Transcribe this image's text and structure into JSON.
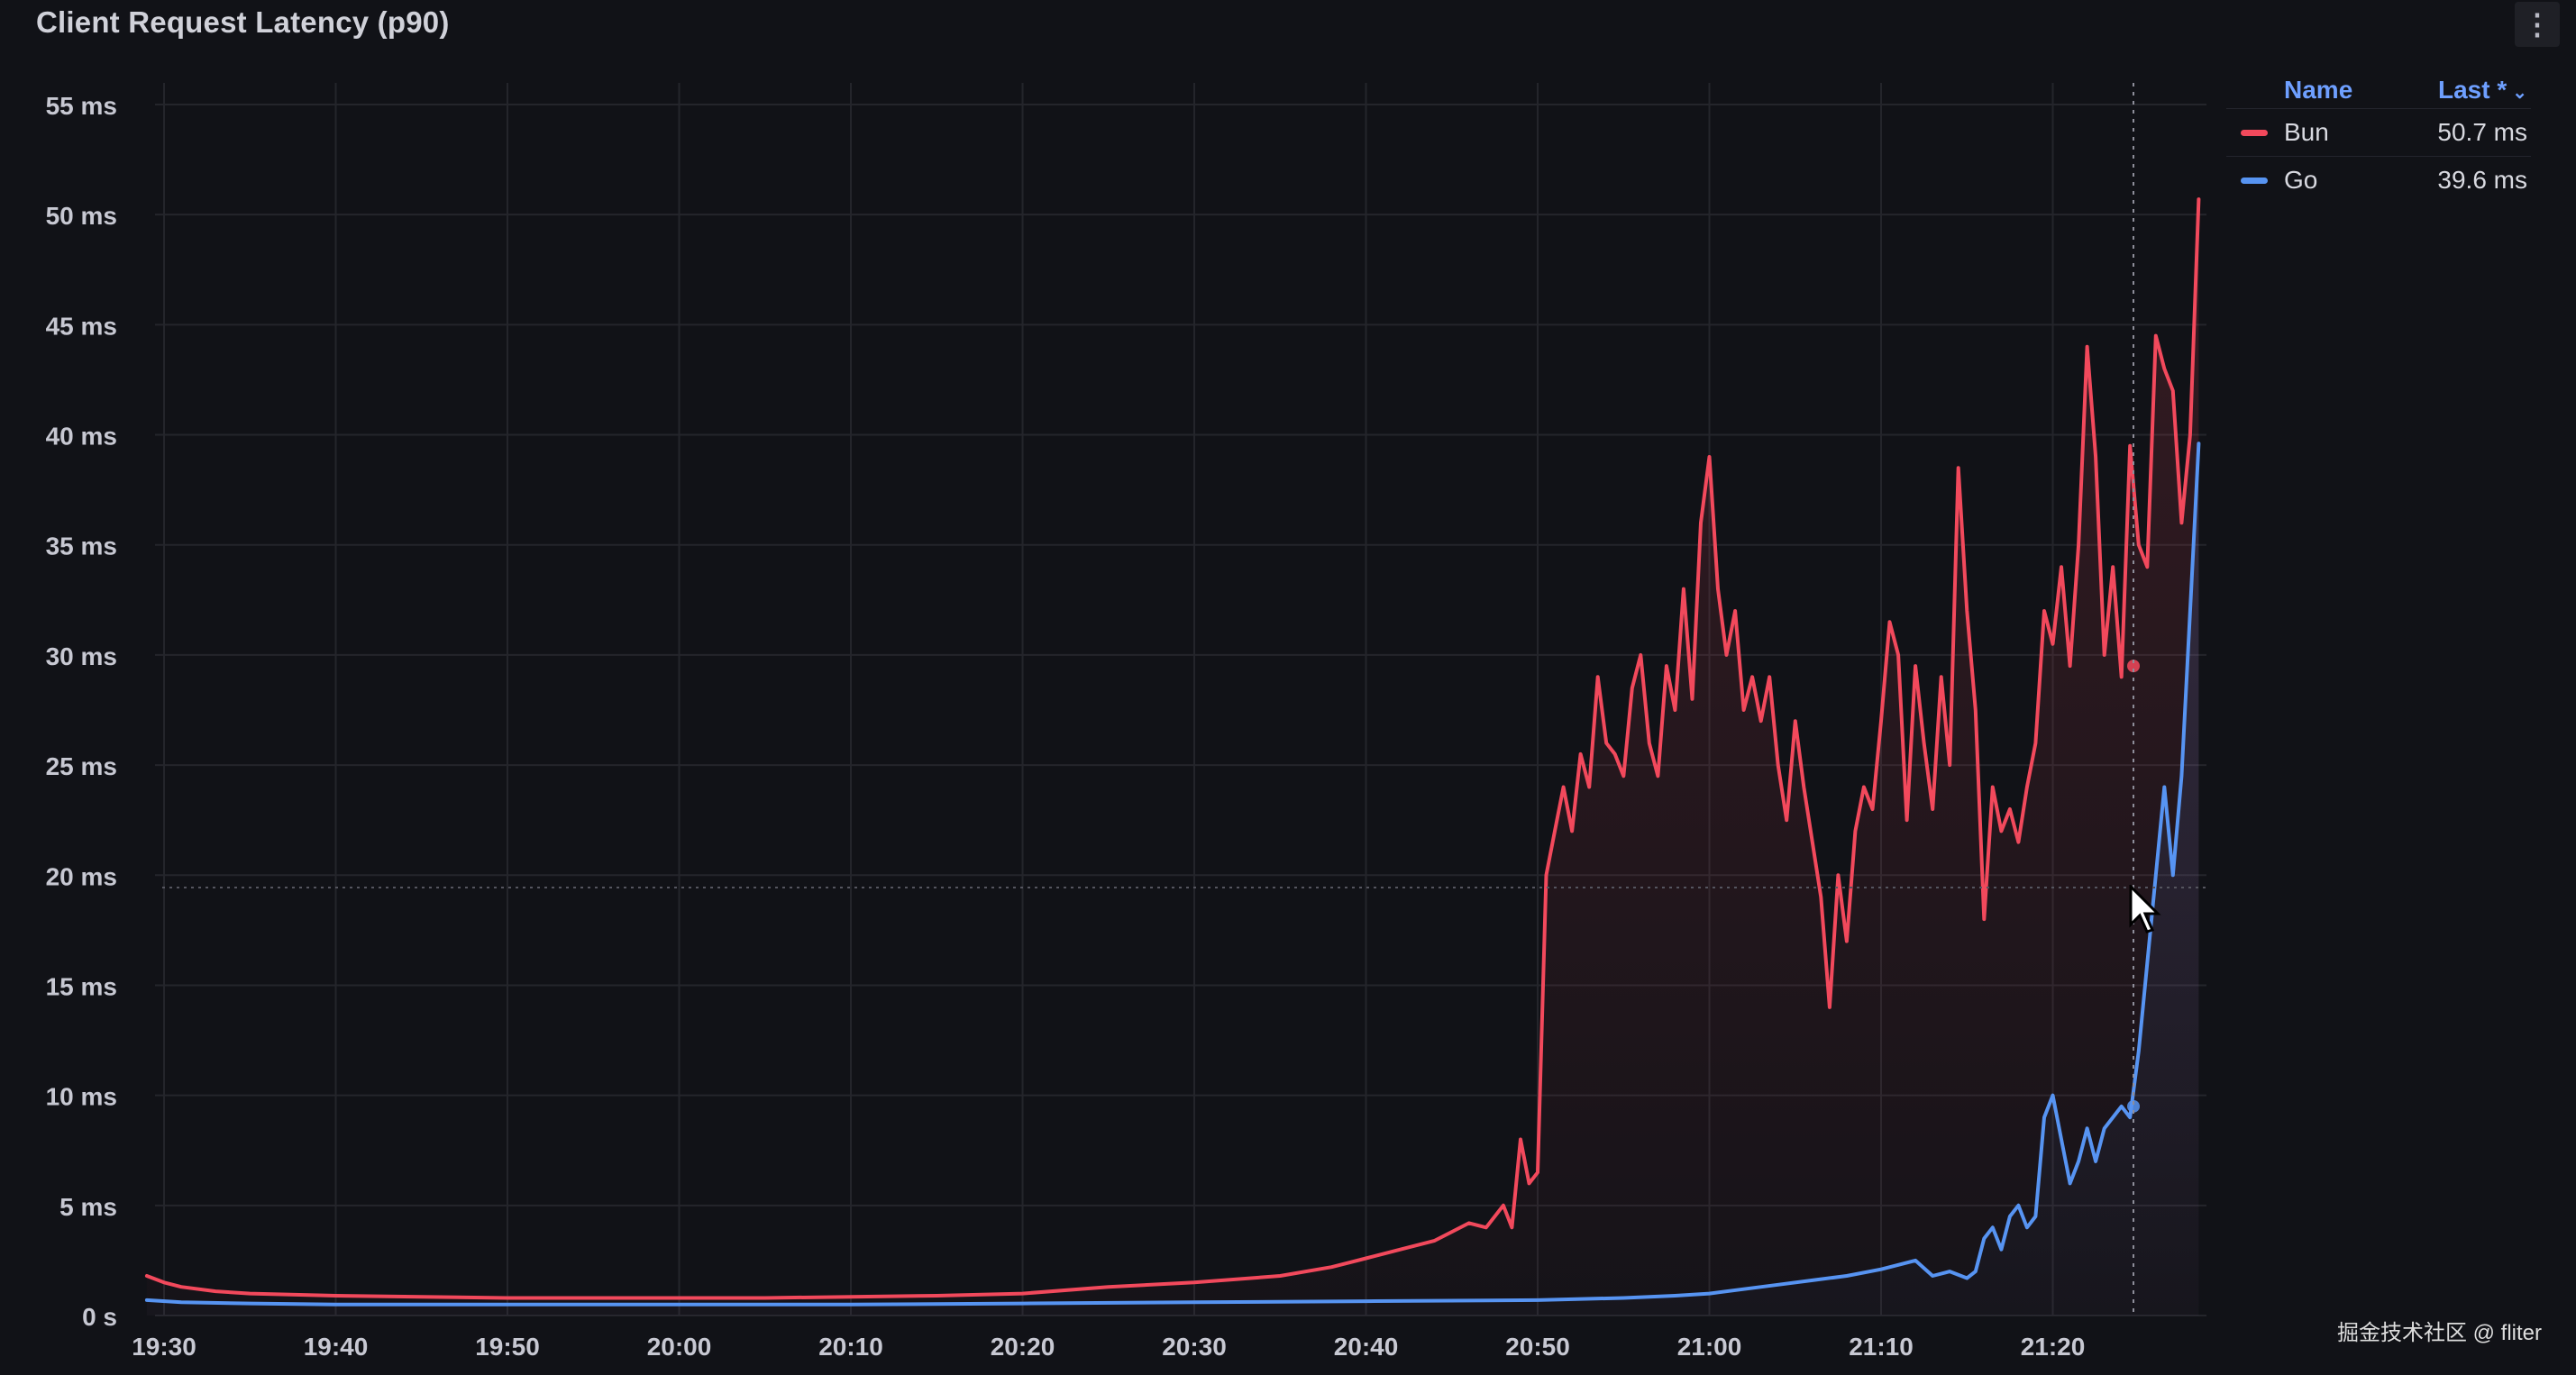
{
  "panel": {
    "title": "Client Request Latency (p90)",
    "menu_icon": "vertical-dots-icon"
  },
  "legend": {
    "header_name": "Name",
    "header_last": "Last *",
    "sort_icon": "chevron-down-icon",
    "items": [
      {
        "name": "Bun",
        "last": "50.7 ms",
        "color": "#f2495c"
      },
      {
        "name": "Go",
        "last": "39.6 ms",
        "color": "#5794f2"
      }
    ]
  },
  "watermark": "掘金技术社区 @ fliter",
  "chart_data": {
    "type": "line",
    "x_unit": "time (HH:MM)",
    "y_unit": "ms",
    "ylim": [
      0,
      55
    ],
    "xlim": [
      "19:30",
      "21:29"
    ],
    "yticks": [
      "0 s",
      "5 ms",
      "10 ms",
      "15 ms",
      "20 ms",
      "25 ms",
      "30 ms",
      "35 ms",
      "40 ms",
      "45 ms",
      "50 ms",
      "55 ms"
    ],
    "xticks": [
      "19:30",
      "19:40",
      "19:50",
      "20:00",
      "20:10",
      "20:20",
      "20:30",
      "20:40",
      "20:50",
      "21:00",
      "21:10",
      "21:20"
    ],
    "grid": true,
    "legend_position": "right",
    "series": [
      {
        "name": "Bun",
        "color": "#f2495c",
        "x": [
          "19:29",
          "19:30",
          "19:31",
          "19:33",
          "19:35",
          "19:40",
          "19:45",
          "19:50",
          "19:55",
          "20:00",
          "20:05",
          "20:10",
          "20:15",
          "20:20",
          "20:25",
          "20:30",
          "20:35",
          "20:38",
          "20:40",
          "20:42",
          "20:44",
          "20:45",
          "20:46",
          "20:47",
          "20:48",
          "20:48:30",
          "20:49",
          "20:49:30",
          "20:50",
          "20:50:30",
          "20:51",
          "20:51:30",
          "20:52",
          "20:52:30",
          "20:53",
          "20:53:30",
          "20:54",
          "20:54:30",
          "20:55",
          "20:55:30",
          "20:56",
          "20:56:30",
          "20:57",
          "20:57:30",
          "20:58",
          "20:58:30",
          "20:59",
          "20:59:30",
          "21:00",
          "21:00:30",
          "21:01",
          "21:01:30",
          "21:02",
          "21:02:30",
          "21:03",
          "21:03:30",
          "21:04",
          "21:04:30",
          "21:05",
          "21:05:30",
          "21:06",
          "21:06:30",
          "21:07",
          "21:07:30",
          "21:08",
          "21:08:30",
          "21:09",
          "21:09:30",
          "21:10",
          "21:10:30",
          "21:11",
          "21:11:30",
          "21:12",
          "21:12:30",
          "21:13",
          "21:13:30",
          "21:14",
          "21:14:30",
          "21:15",
          "21:15:30",
          "21:16",
          "21:16:30",
          "21:17",
          "21:17:30",
          "21:18",
          "21:18:30",
          "21:19",
          "21:19:30",
          "21:20",
          "21:20:30",
          "21:21",
          "21:21:30",
          "21:22",
          "21:22:30",
          "21:23",
          "21:23:30",
          "21:24",
          "21:24:30",
          "21:25",
          "21:25:30",
          "21:26",
          "21:26:30",
          "21:27",
          "21:27:30",
          "21:28",
          "21:28:30"
        ],
        "values": [
          1.8,
          1.5,
          1.3,
          1.1,
          1.0,
          0.9,
          0.85,
          0.8,
          0.8,
          0.8,
          0.8,
          0.85,
          0.9,
          1.0,
          1.3,
          1.5,
          1.8,
          2.2,
          2.6,
          3.0,
          3.4,
          3.8,
          4.2,
          4.0,
          5.0,
          4.0,
          8.0,
          6.0,
          6.5,
          20.0,
          22.0,
          24.0,
          22.0,
          25.5,
          24.0,
          29.0,
          26.0,
          25.5,
          24.5,
          28.5,
          30.0,
          26.0,
          24.5,
          29.5,
          27.5,
          33.0,
          28.0,
          36.0,
          39.0,
          33.0,
          30.0,
          32.0,
          27.5,
          29.0,
          27.0,
          29.0,
          25.0,
          22.5,
          27.0,
          24.0,
          21.5,
          19.0,
          14.0,
          20.0,
          17.0,
          22.0,
          24.0,
          23.0,
          27.0,
          31.5,
          30.0,
          22.5,
          29.5,
          26.0,
          23.0,
          29.0,
          25.0,
          38.5,
          32.0,
          27.5,
          18.0,
          24.0,
          22.0,
          23.0,
          21.5,
          24.0,
          26.0,
          32.0,
          30.5,
          34.0,
          29.5,
          35.0,
          44.0,
          39.0,
          30.0,
          34.0,
          29.0,
          39.5,
          35.0,
          34.0,
          44.5,
          43.0,
          42.0,
          36.0,
          40.0,
          50.7
        ]
      },
      {
        "name": "Go",
        "color": "#5794f2",
        "x": [
          "19:29",
          "19:31",
          "19:35",
          "19:40",
          "19:50",
          "20:00",
          "20:10",
          "20:20",
          "20:30",
          "20:40",
          "20:50",
          "20:55",
          "20:58",
          "21:00",
          "21:02",
          "21:04",
          "21:06",
          "21:08",
          "21:10",
          "21:11",
          "21:12",
          "21:13",
          "21:14",
          "21:15",
          "21:15:30",
          "21:16",
          "21:16:30",
          "21:17",
          "21:17:30",
          "21:18",
          "21:18:30",
          "21:19",
          "21:19:30",
          "21:20",
          "21:20:30",
          "21:21",
          "21:21:30",
          "21:22",
          "21:22:30",
          "21:23",
          "21:23:30",
          "21:24",
          "21:24:30",
          "21:25",
          "21:25:30",
          "21:26",
          "21:26:30",
          "21:27",
          "21:27:30",
          "21:28",
          "21:28:30"
        ],
        "values": [
          0.7,
          0.6,
          0.55,
          0.5,
          0.5,
          0.5,
          0.5,
          0.55,
          0.6,
          0.65,
          0.7,
          0.8,
          0.9,
          1.0,
          1.2,
          1.4,
          1.6,
          1.8,
          2.1,
          2.3,
          2.5,
          1.8,
          2.0,
          1.7,
          2.0,
          3.5,
          4.0,
          3.0,
          4.5,
          5.0,
          4.0,
          4.5,
          9.0,
          10.0,
          8.0,
          6.0,
          7.0,
          8.5,
          7.0,
          8.5,
          9.0,
          9.5,
          9.0,
          12.0,
          16.0,
          20.0,
          24.0,
          20.0,
          24.5,
          32.0,
          39.6
        ]
      }
    ]
  }
}
